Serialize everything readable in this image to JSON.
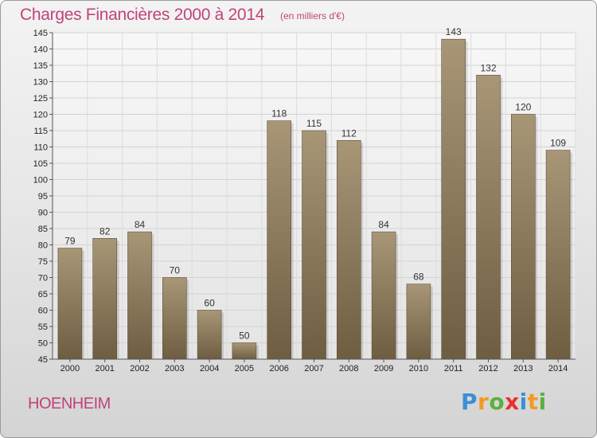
{
  "header": {
    "title": "Charges Financières 2000 à 2014",
    "unit_note": "(en milliers d'€)"
  },
  "footer": {
    "commune": "HOENHEIM",
    "logo_letters": [
      "P",
      "r",
      "o",
      "x",
      "i",
      "t",
      "i"
    ],
    "logo_colors": [
      "#3a8fd6",
      "#f29a1f",
      "#58b23c",
      "#e8302b",
      "#3a8fd6",
      "#f29a1f",
      "#58b23c"
    ]
  },
  "colors": {
    "bar_top": "#a89677",
    "bar_bottom": "#6e5d41",
    "text_accent": "#c0437a"
  },
  "chart_data": {
    "type": "bar",
    "categories": [
      "2000",
      "2001",
      "2002",
      "2003",
      "2004",
      "2005",
      "2006",
      "2007",
      "2008",
      "2009",
      "2010",
      "2011",
      "2012",
      "2013",
      "2014"
    ],
    "values": [
      79,
      82,
      84,
      70,
      60,
      50,
      118,
      115,
      112,
      84,
      68,
      143,
      132,
      120,
      109
    ],
    "ylim": [
      45,
      145
    ],
    "yticks": [
      45,
      50,
      55,
      60,
      65,
      70,
      75,
      80,
      85,
      90,
      95,
      100,
      105,
      110,
      115,
      120,
      125,
      130,
      135,
      140,
      145
    ],
    "grid": true,
    "legend": "none"
  }
}
